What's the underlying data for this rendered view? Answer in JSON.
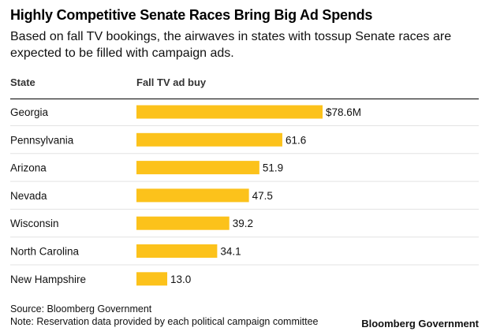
{
  "title": "Highly Competitive Senate Races Bring Big Ad Spends",
  "subtitle": "Based on fall TV bookings, the airwaves in states with tossup Senate races are expected to be filled with campaign ads.",
  "columns": {
    "state": "State",
    "value": "Fall TV ad buy"
  },
  "footer": {
    "source": "Source: Bloomberg Government",
    "note": "Note: Reservation data provided by each political campaign committee",
    "brand": "Bloomberg Government"
  },
  "chart_data": {
    "type": "bar",
    "orientation": "horizontal",
    "categories": [
      "Georgia",
      "Pennsylvania",
      "Arizona",
      "Nevada",
      "Wisconsin",
      "North Carolina",
      "New Hampshire"
    ],
    "values": [
      78.6,
      61.6,
      51.9,
      47.5,
      39.2,
      34.1,
      13.0
    ],
    "value_labels": [
      "$78.6M",
      "61.6",
      "51.9",
      "47.5",
      "39.2",
      "34.1",
      "13.0"
    ],
    "bar_color": "#fcc21b",
    "xlim": [
      0,
      78.6
    ],
    "grid": false
  }
}
